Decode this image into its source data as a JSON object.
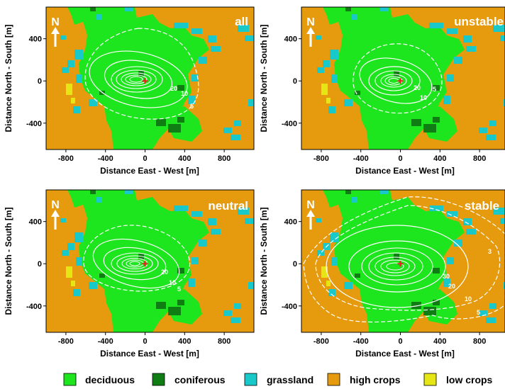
{
  "panels": [
    {
      "title": "all",
      "contour_labels": [
        "20",
        "10",
        "5"
      ]
    },
    {
      "title": "unstable",
      "contour_labels": [
        "20",
        "10",
        "5"
      ]
    },
    {
      "title": "neutral",
      "contour_labels": [
        "20",
        "10",
        "5"
      ]
    },
    {
      "title": "stable",
      "contour_labels": [
        "30",
        "20",
        "10",
        "5",
        "3"
      ]
    }
  ],
  "north_label": "N",
  "x_axis": {
    "label": "Distance East - West [m]",
    "ticks": [
      "-800",
      "-400",
      "0",
      "400",
      "800"
    ],
    "range": [
      -1000,
      1100
    ]
  },
  "y_axis": {
    "label": "Distance North - South [m]",
    "ticks": [
      "400",
      "0",
      "-400"
    ],
    "range": [
      -650,
      700
    ]
  },
  "legend": [
    {
      "label": "deciduous",
      "color": "#1ee61e"
    },
    {
      "label": "coniferous",
      "color": "#0f7d14"
    },
    {
      "label": "grassland",
      "color": "#19c8c8"
    },
    {
      "label": "high crops",
      "color": "#e69b0f"
    },
    {
      "label": "low crops",
      "color": "#e6e614"
    }
  ],
  "colors": {
    "background_crops": "#e69b0f",
    "tower_marker": "#e61e1e",
    "contours": "#ffffff"
  }
}
